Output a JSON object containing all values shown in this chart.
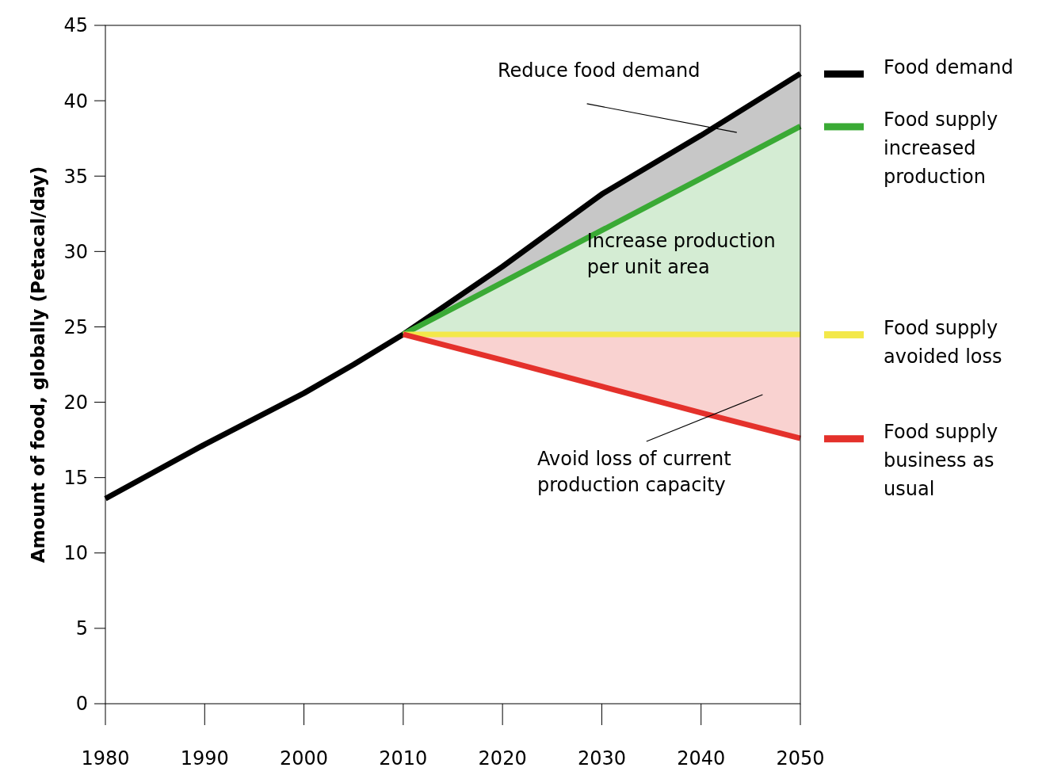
{
  "chart_data": {
    "type": "line",
    "ylabel": "Amount of food, globally (Petacal/day)",
    "x": [
      1980,
      1990,
      2000,
      2005,
      2010,
      2020,
      2030,
      2040,
      2050
    ],
    "xlim": [
      1980,
      2050
    ],
    "xticks": [
      1980,
      1990,
      2000,
      2010,
      2020,
      2030,
      2040,
      2050
    ],
    "ylim": [
      0,
      45
    ],
    "yticks": [
      0,
      5,
      10,
      15,
      20,
      25,
      30,
      35,
      40,
      45
    ],
    "grid": false,
    "legend": "right",
    "marker": "none",
    "line_style": "solid",
    "series": [
      {
        "name": "Food demand",
        "color": "#000000",
        "values": [
          13.6,
          17.2,
          20.6,
          22.5,
          24.5,
          29.0,
          33.8,
          37.7,
          41.8
        ],
        "lower": [
          null,
          null,
          null,
          null,
          24.5,
          27.95,
          31.4,
          34.85,
          38.3
        ],
        "upper": [
          null,
          null,
          null,
          null,
          24.5,
          29.0,
          33.8,
          37.7,
          41.8
        ]
      },
      {
        "name": "Food supply increased production",
        "color": "#3aaa35",
        "values": [
          null,
          null,
          null,
          null,
          24.5,
          27.95,
          31.4,
          34.85,
          38.3
        ],
        "lower": [
          null,
          null,
          null,
          null,
          24.5,
          24.5,
          24.5,
          24.5,
          24.5
        ],
        "upper": [
          null,
          null,
          null,
          null,
          24.5,
          27.95,
          31.4,
          34.85,
          38.3
        ]
      },
      {
        "name": "Food supply avoided loss",
        "color": "#f3e84a",
        "values": [
          null,
          null,
          null,
          null,
          24.5,
          24.5,
          24.5,
          24.5,
          24.5
        ]
      },
      {
        "name": "Food supply business as usual",
        "color": "#e4312b",
        "values": [
          null,
          null,
          null,
          null,
          24.5,
          22.8,
          21.05,
          19.3,
          17.6
        ],
        "lower": [
          null,
          null,
          null,
          null,
          24.5,
          22.8,
          21.05,
          19.3,
          17.6
        ],
        "upper": [
          null,
          null,
          null,
          null,
          24.5,
          24.5,
          24.5,
          24.5,
          24.5
        ]
      }
    ],
    "annotations": [
      "Reduce food demand",
      "Increase production per unit area",
      "Avoid loss of current production capacity"
    ]
  }
}
